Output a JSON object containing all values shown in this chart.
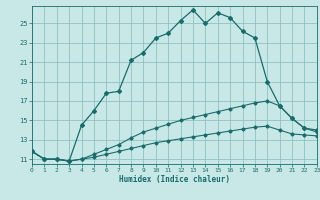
{
  "xlabel": "Humidex (Indice chaleur)",
  "background_color": "#c8e8e8",
  "grid_color": "#90c0c0",
  "line_color": "#1a6b6b",
  "xlim": [
    0,
    23
  ],
  "ylim": [
    10.5,
    26.8
  ],
  "xticks": [
    0,
    1,
    2,
    3,
    4,
    5,
    6,
    7,
    8,
    9,
    10,
    11,
    12,
    13,
    14,
    15,
    16,
    17,
    18,
    19,
    20,
    21,
    22,
    23
  ],
  "yticks": [
    11,
    13,
    15,
    17,
    19,
    21,
    23,
    25
  ],
  "curve1_x": [
    0,
    1,
    2,
    3,
    4,
    5,
    6,
    7,
    8,
    9,
    10,
    11,
    12,
    13,
    14,
    15,
    16,
    17,
    18,
    19,
    20,
    21,
    22,
    23
  ],
  "curve1_y": [
    11.8,
    11.0,
    11.0,
    10.8,
    14.5,
    16.0,
    17.8,
    18.0,
    21.2,
    22.0,
    23.5,
    24.0,
    25.3,
    26.4,
    25.0,
    26.1,
    25.6,
    24.2,
    23.5,
    19.0,
    16.5,
    15.2,
    14.2,
    14.0
  ],
  "curve2_x": [
    0,
    1,
    2,
    3,
    4,
    5,
    6,
    7,
    8,
    9,
    10,
    11,
    12,
    13,
    14,
    15,
    16,
    17,
    18,
    19,
    20,
    21,
    22,
    23
  ],
  "curve2_y": [
    11.8,
    11.0,
    11.0,
    10.8,
    11.0,
    11.5,
    12.0,
    12.5,
    13.2,
    13.8,
    14.2,
    14.6,
    15.0,
    15.3,
    15.6,
    15.9,
    16.2,
    16.5,
    16.8,
    17.0,
    16.5,
    15.2,
    14.2,
    13.8
  ],
  "curve3_x": [
    0,
    1,
    2,
    3,
    4,
    5,
    6,
    7,
    8,
    9,
    10,
    11,
    12,
    13,
    14,
    15,
    16,
    17,
    18,
    19,
    20,
    21,
    22,
    23
  ],
  "curve3_y": [
    11.8,
    11.0,
    11.0,
    10.8,
    11.0,
    11.2,
    11.5,
    11.8,
    12.1,
    12.4,
    12.7,
    12.9,
    13.1,
    13.3,
    13.5,
    13.7,
    13.9,
    14.1,
    14.3,
    14.4,
    14.0,
    13.6,
    13.5,
    13.4
  ]
}
